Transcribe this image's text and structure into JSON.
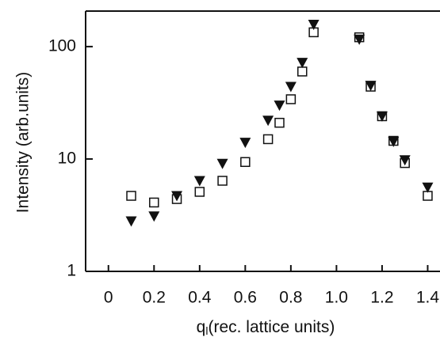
{
  "chart_data": {
    "type": "scatter",
    "xlabel": [
      "q",
      "l",
      "(rec. lattice units)"
    ],
    "ylabel": "Intensity (arb.units)",
    "xlim": [
      -0.1,
      1.454
    ],
    "ylim": [
      1,
      207
    ],
    "log_y": true,
    "xticks": [
      0,
      0.2,
      0.4,
      0.6,
      0.8,
      {
        "value": 1,
        "label": "1.0"
      },
      1.2,
      1.4
    ],
    "yticks": [
      1,
      10,
      100
    ],
    "series": [
      {
        "marker": "square-open",
        "color": "#111111",
        "x": [
          0.1,
          0.2,
          0.3,
          0.4,
          0.5,
          0.6,
          0.7,
          0.75,
          0.8,
          0.85,
          0.9,
          1.1,
          1.15,
          1.2,
          1.25,
          1.3,
          1.4
        ],
        "values": [
          4.7,
          4.1,
          4.4,
          5.1,
          6.4,
          9.4,
          15,
          21,
          34,
          60,
          134,
          121,
          44,
          24,
          14.5,
          9.2,
          4.7
        ]
      },
      {
        "marker": "triangle-down",
        "color": "#111111",
        "x": [
          0.1,
          0.2,
          0.3,
          0.4,
          0.5,
          0.6,
          0.7,
          0.75,
          0.8,
          0.85,
          0.9,
          1.1,
          1.15,
          1.2,
          1.25,
          1.3,
          1.4
        ],
        "values": [
          2.8,
          3.1,
          4.7,
          6.4,
          9.1,
          14,
          22,
          30,
          44,
          72,
          157,
          116,
          45,
          24,
          14.3,
          9.8,
          5.6
        ]
      }
    ]
  }
}
